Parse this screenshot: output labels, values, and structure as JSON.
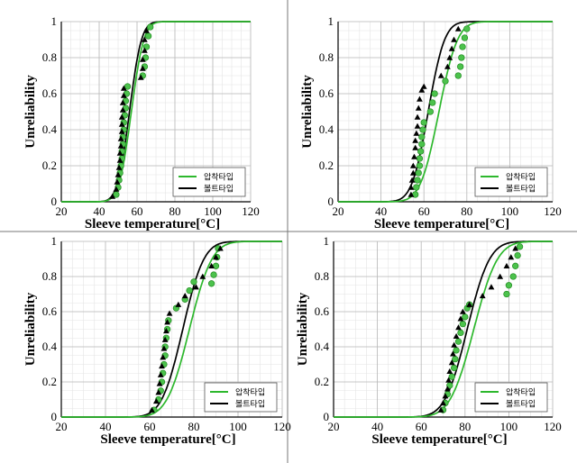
{
  "chart_data": [
    {
      "type": "line",
      "xlabel": "Sleeve temperature[°C]",
      "ylabel": "Unreliability",
      "xlim": [
        20,
        120
      ],
      "ylim": [
        0,
        1
      ],
      "xticks": [
        20,
        40,
        60,
        80,
        100,
        120
      ],
      "yticks": [
        0,
        0.2,
        0.4,
        0.6,
        0.8,
        1
      ],
      "legend": [
        "압착타입",
        "볼트타입"
      ],
      "legend_position": "bottom-right",
      "series": [
        {
          "name": "압착타입",
          "color": "#2db82d",
          "mean": 57,
          "sd": 5.2,
          "points": [
            [
              49,
              0.04
            ],
            [
              50,
              0.08
            ],
            [
              50.5,
              0.12
            ],
            [
              51,
              0.16
            ],
            [
              51.5,
              0.2
            ],
            [
              52,
              0.24
            ],
            [
              52,
              0.28
            ],
            [
              52.5,
              0.32
            ],
            [
              52.5,
              0.36
            ],
            [
              53,
              0.4
            ],
            [
              53,
              0.44
            ],
            [
              53.5,
              0.48
            ],
            [
              54,
              0.52
            ],
            [
              54,
              0.56
            ],
            [
              54.5,
              0.6
            ],
            [
              55,
              0.64
            ],
            [
              63,
              0.7
            ],
            [
              64,
              0.75
            ],
            [
              64.5,
              0.8
            ],
            [
              65,
              0.86
            ],
            [
              66,
              0.92
            ],
            [
              67,
              0.97
            ]
          ]
        },
        {
          "name": "볼트타입",
          "color": "#000000",
          "mean": 56,
          "sd": 5.0,
          "points": [
            [
              47,
              0.03
            ],
            [
              49,
              0.07
            ],
            [
              49.5,
              0.11
            ],
            [
              50,
              0.15
            ],
            [
              50.5,
              0.19
            ],
            [
              51,
              0.23
            ],
            [
              51,
              0.27
            ],
            [
              51.5,
              0.31
            ],
            [
              51.5,
              0.35
            ],
            [
              52,
              0.39
            ],
            [
              52,
              0.43
            ],
            [
              52,
              0.47
            ],
            [
              52.5,
              0.51
            ],
            [
              52.5,
              0.55
            ],
            [
              53,
              0.59
            ],
            [
              53,
              0.63
            ],
            [
              62,
              0.69
            ],
            [
              63,
              0.74
            ],
            [
              63,
              0.79
            ],
            [
              64,
              0.84
            ],
            [
              64,
              0.9
            ],
            [
              65,
              0.95
            ]
          ]
        }
      ]
    },
    {
      "type": "line",
      "xlabel": "Sleeve temperature[°C]",
      "ylabel": "Unreliability",
      "xlim": [
        20,
        120
      ],
      "ylim": [
        0,
        1
      ],
      "xticks": [
        20,
        40,
        60,
        80,
        100,
        120
      ],
      "yticks": [
        0,
        0.2,
        0.4,
        0.6,
        0.8,
        1
      ],
      "legend": [
        "압착타입",
        "볼트타입"
      ],
      "legend_position": "bottom-right",
      "series": [
        {
          "name": "압착타입",
          "color": "#2db82d",
          "mean": 67,
          "sd": 6.8,
          "points": [
            [
              56,
              0.04
            ],
            [
              56.5,
              0.08
            ],
            [
              57,
              0.12
            ],
            [
              57.5,
              0.16
            ],
            [
              58,
              0.2
            ],
            [
              58,
              0.24
            ],
            [
              58.5,
              0.28
            ],
            [
              59,
              0.32
            ],
            [
              59,
              0.36
            ],
            [
              59.5,
              0.4
            ],
            [
              60,
              0.44
            ],
            [
              63,
              0.5
            ],
            [
              64,
              0.55
            ],
            [
              65,
              0.6
            ],
            [
              70,
              0.67
            ],
            [
              76,
              0.7
            ],
            [
              77,
              0.75
            ],
            [
              77.5,
              0.8
            ],
            [
              78,
              0.86
            ],
            [
              79,
              0.91
            ],
            [
              80,
              0.96
            ]
          ]
        },
        {
          "name": "볼트타입",
          "color": "#000000",
          "mean": 62,
          "sd": 6.0,
          "points": [
            [
              54,
              0.04
            ],
            [
              54,
              0.08
            ],
            [
              54.5,
              0.12
            ],
            [
              55,
              0.16
            ],
            [
              55,
              0.2
            ],
            [
              55.5,
              0.25
            ],
            [
              56,
              0.3
            ],
            [
              56,
              0.34
            ],
            [
              56.5,
              0.38
            ],
            [
              57,
              0.42
            ],
            [
              57,
              0.47
            ],
            [
              57.5,
              0.52
            ],
            [
              58,
              0.57
            ],
            [
              59,
              0.62
            ],
            [
              60,
              0.64
            ],
            [
              68,
              0.7
            ],
            [
              71,
              0.75
            ],
            [
              72,
              0.8
            ],
            [
              73,
              0.85
            ],
            [
              74,
              0.9
            ],
            [
              76,
              0.96
            ]
          ]
        }
      ]
    },
    {
      "type": "line",
      "xlabel": "Sleeve temperature[°C]",
      "ylabel": "Unreliability",
      "xlim": [
        20,
        120
      ],
      "ylim": [
        0,
        1
      ],
      "xticks": [
        20,
        40,
        60,
        80,
        100,
        120
      ],
      "yticks": [
        0,
        0.2,
        0.4,
        0.6,
        0.8,
        1
      ],
      "legend": [
        "압착타입",
        "볼트타입"
      ],
      "legend_position": "bottom-right",
      "series": [
        {
          "name": "압착타입",
          "color": "#2db82d",
          "mean": 78,
          "sd": 8.0,
          "points": [
            [
              62,
              0.04
            ],
            [
              64,
              0.1
            ],
            [
              65,
              0.15
            ],
            [
              65.5,
              0.2
            ],
            [
              66,
              0.25
            ],
            [
              66.5,
              0.3
            ],
            [
              67,
              0.35
            ],
            [
              67,
              0.4
            ],
            [
              67.5,
              0.45
            ],
            [
              68,
              0.5
            ],
            [
              68.5,
              0.55
            ],
            [
              72,
              0.62
            ],
            [
              76,
              0.67
            ],
            [
              78,
              0.72
            ],
            [
              80,
              0.77
            ],
            [
              88,
              0.76
            ],
            [
              89,
              0.81
            ],
            [
              90,
              0.86
            ],
            [
              90.5,
              0.91
            ],
            [
              91,
              0.96
            ]
          ]
        },
        {
          "name": "볼트타입",
          "color": "#000000",
          "mean": 75,
          "sd": 7.5,
          "points": [
            [
              61,
              0.04
            ],
            [
              63,
              0.09
            ],
            [
              64,
              0.14
            ],
            [
              64.5,
              0.19
            ],
            [
              65,
              0.24
            ],
            [
              65.5,
              0.29
            ],
            [
              66,
              0.34
            ],
            [
              66.5,
              0.39
            ],
            [
              67,
              0.44
            ],
            [
              67.5,
              0.49
            ],
            [
              68,
              0.54
            ],
            [
              69,
              0.59
            ],
            [
              73,
              0.64
            ],
            [
              76,
              0.69
            ],
            [
              81,
              0.74
            ],
            [
              84,
              0.8
            ],
            [
              88,
              0.86
            ],
            [
              90,
              0.91
            ],
            [
              92,
              0.96
            ]
          ]
        }
      ]
    },
    {
      "type": "line",
      "xlabel": "Sleeve temperature[°C]",
      "ylabel": "Unreliability",
      "xlim": [
        20,
        120
      ],
      "ylim": [
        0,
        1
      ],
      "xticks": [
        20,
        40,
        60,
        80,
        100,
        120
      ],
      "yticks": [
        0,
        0.2,
        0.4,
        0.6,
        0.8,
        1
      ],
      "legend": [
        "압착타입",
        "볼트타입"
      ],
      "legend_position": "bottom-right",
      "series": [
        {
          "name": "압착타입",
          "color": "#2db82d",
          "mean": 84,
          "sd": 8.5,
          "points": [
            [
              70,
              0.04
            ],
            [
              71,
              0.08
            ],
            [
              72,
              0.13
            ],
            [
              73,
              0.18
            ],
            [
              74,
              0.23
            ],
            [
              75,
              0.28
            ],
            [
              75.5,
              0.33
            ],
            [
              76,
              0.38
            ],
            [
              77,
              0.43
            ],
            [
              78,
              0.48
            ],
            [
              79,
              0.53
            ],
            [
              80,
              0.57
            ],
            [
              81,
              0.62
            ],
            [
              82,
              0.64
            ],
            [
              99,
              0.7
            ],
            [
              100,
              0.75
            ],
            [
              102,
              0.8
            ],
            [
              103,
              0.86
            ],
            [
              104,
              0.92
            ],
            [
              105,
              0.97
            ]
          ]
        },
        {
          "name": "볼트타입",
          "color": "#000000",
          "mean": 81,
          "sd": 8.0,
          "points": [
            [
              69,
              0.04
            ],
            [
              70,
              0.08
            ],
            [
              71,
              0.12
            ],
            [
              72,
              0.16
            ],
            [
              72.5,
              0.21
            ],
            [
              73,
              0.26
            ],
            [
              74,
              0.31
            ],
            [
              74.5,
              0.36
            ],
            [
              75,
              0.41
            ],
            [
              76,
              0.46
            ],
            [
              77,
              0.51
            ],
            [
              78,
              0.56
            ],
            [
              79,
              0.6
            ],
            [
              82,
              0.64
            ],
            [
              88,
              0.69
            ],
            [
              92,
              0.74
            ],
            [
              96,
              0.8
            ],
            [
              99,
              0.86
            ],
            [
              101,
              0.91
            ],
            [
              103,
              0.96
            ]
          ]
        }
      ]
    }
  ]
}
